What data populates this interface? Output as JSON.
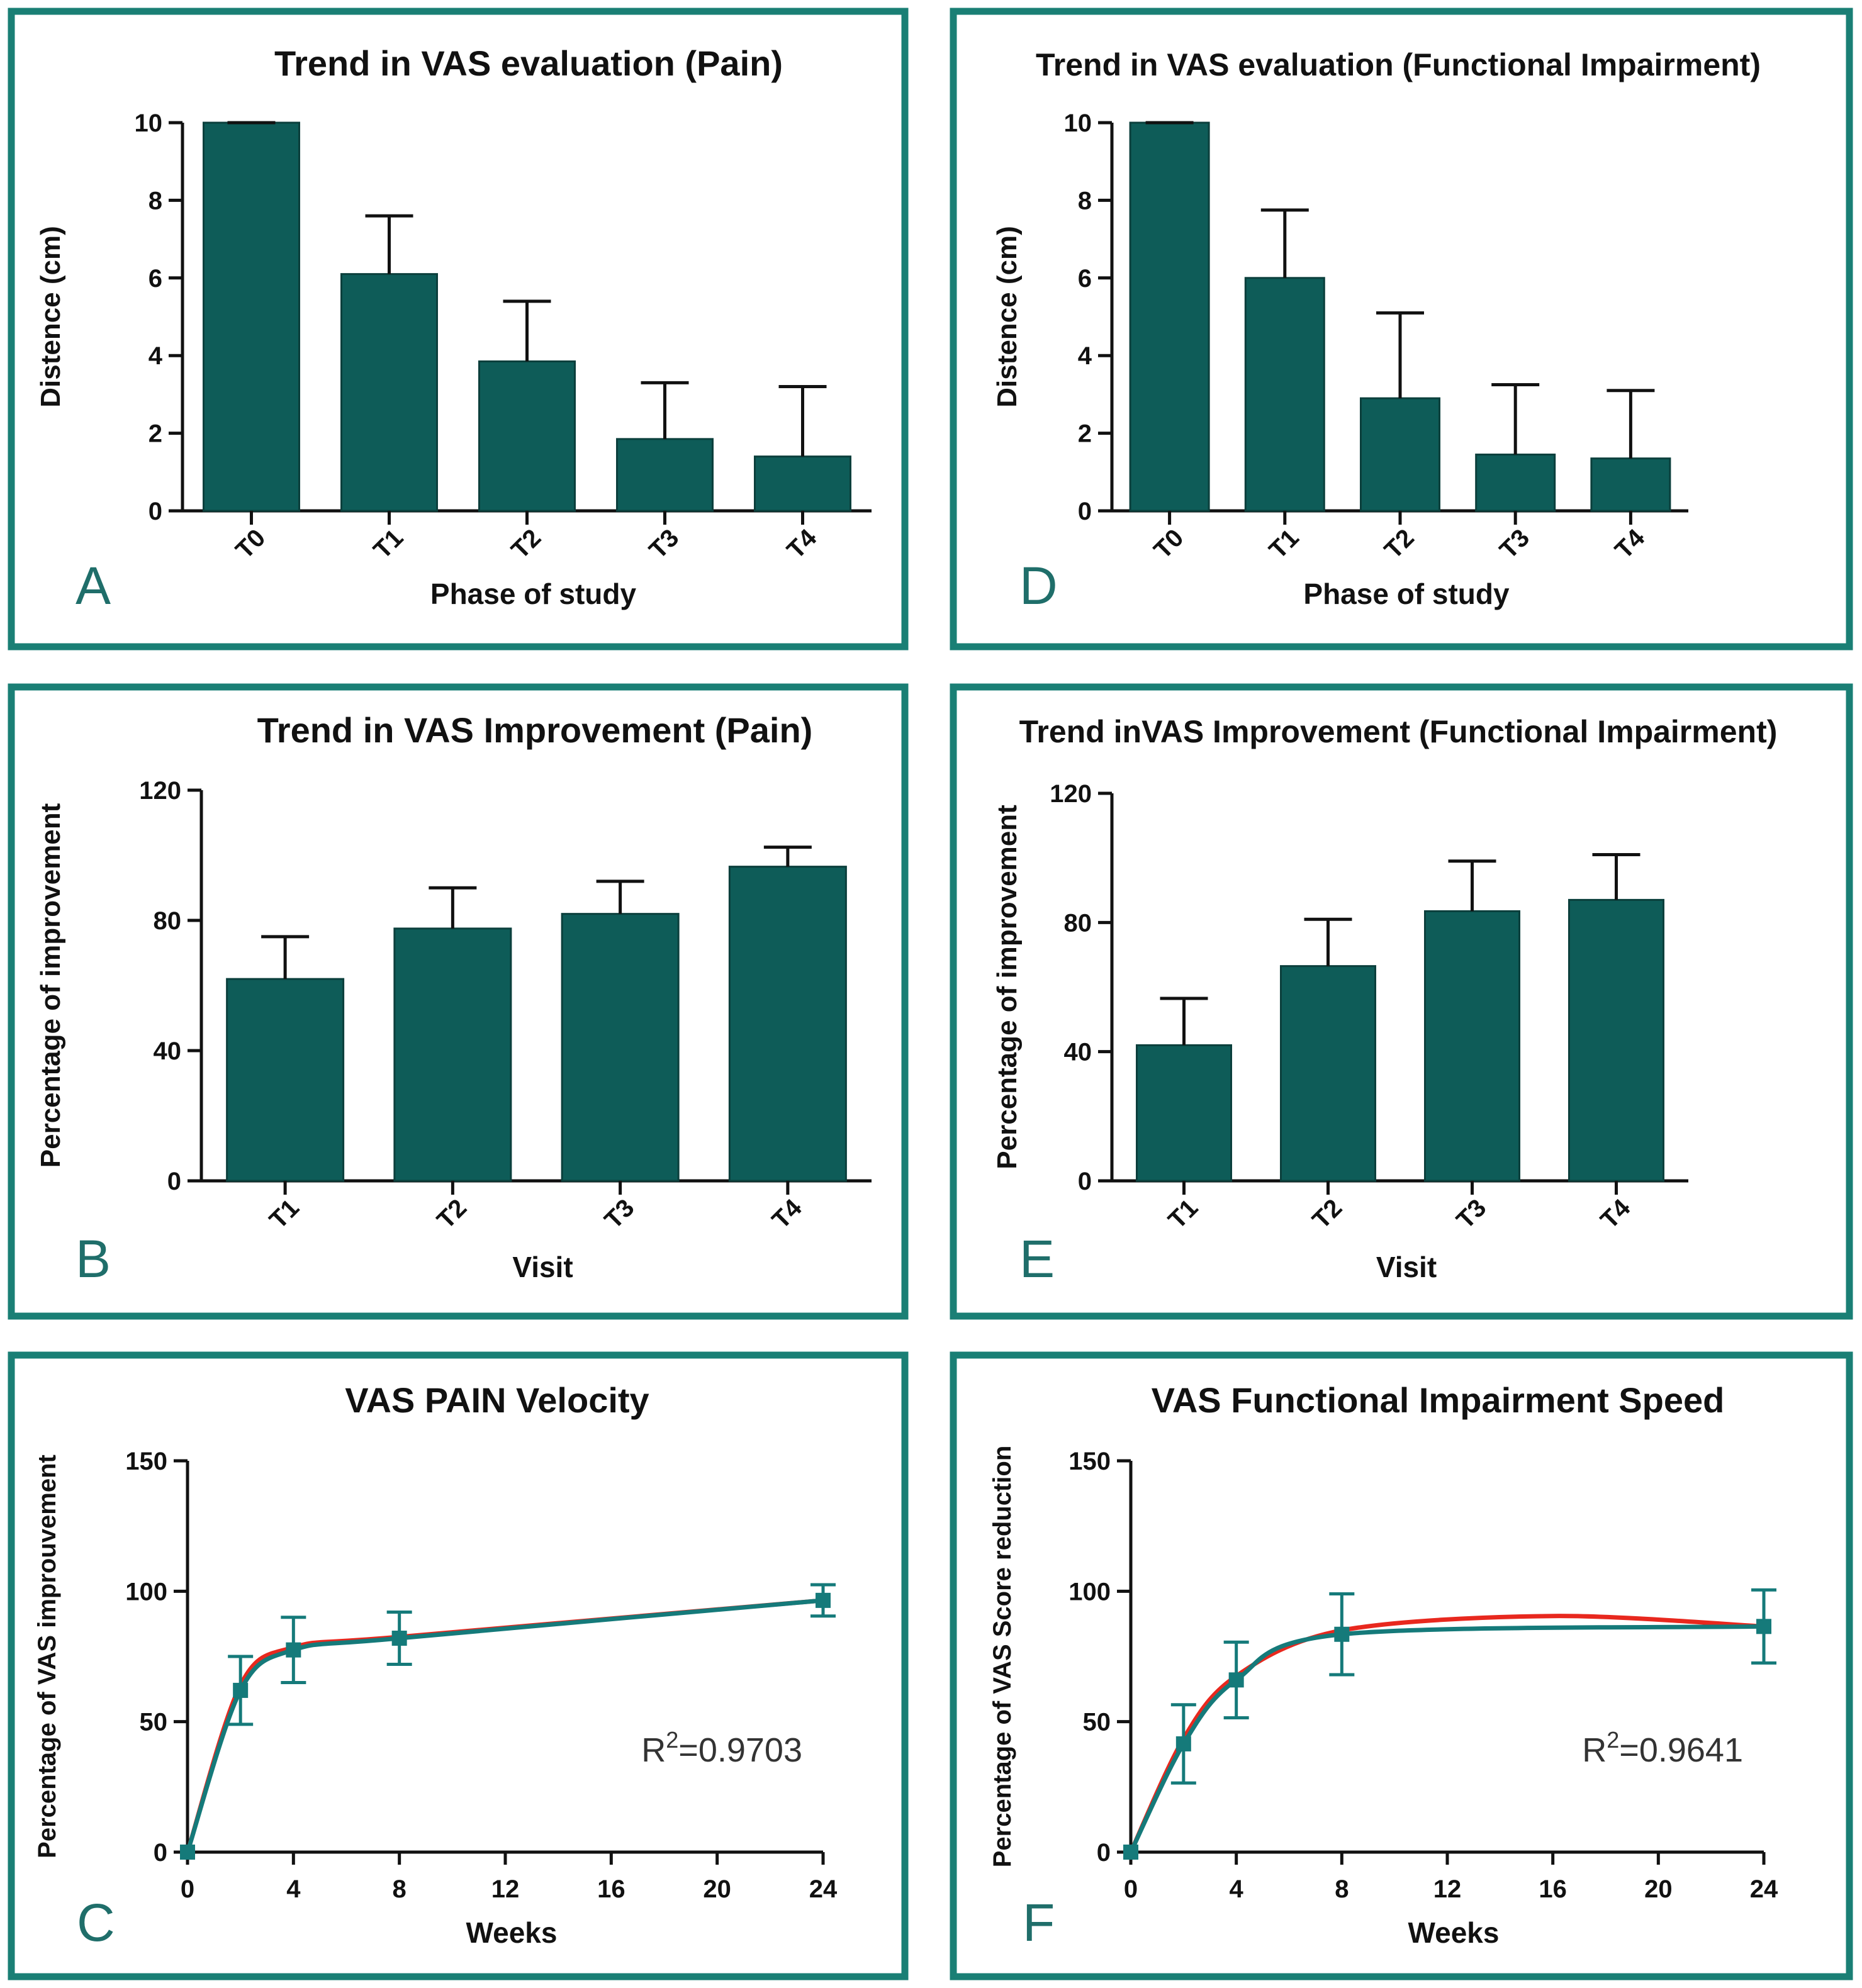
{
  "colors": {
    "frame": "#1a7f75",
    "bar": "#0e5c58",
    "line_observed": "#157a7a",
    "line_fit": "#e8281e",
    "letter": "#1f6e6a"
  },
  "chart_data": [
    {
      "id": "A",
      "type": "bar",
      "letter": "A",
      "title": "Trend in VAS evaluation (Pain)",
      "xlabel": "Phase of study",
      "ylabel": "Distence (cm)",
      "categories": [
        "T0",
        "T1",
        "T2",
        "T3",
        "T4"
      ],
      "values": [
        10.0,
        6.1,
        3.85,
        1.85,
        1.4
      ],
      "errors": [
        0.0,
        1.5,
        1.55,
        1.45,
        1.8
      ],
      "ylim": [
        0,
        10
      ],
      "yticks": [
        0,
        2,
        4,
        6,
        8,
        10
      ],
      "yticklabels": [
        "0",
        "2",
        "4",
        "6",
        "8",
        "10"
      ]
    },
    {
      "id": "D",
      "type": "bar",
      "letter": "D",
      "title": "Trend in VAS evaluation (Functional Impairment)",
      "xlabel": "Phase of study",
      "ylabel": "Distence (cm)",
      "categories": [
        "T0",
        "T1",
        "T2",
        "T3",
        "T4"
      ],
      "values": [
        10.0,
        6.0,
        2.9,
        1.45,
        1.35
      ],
      "errors": [
        0.0,
        1.75,
        2.2,
        1.8,
        1.75
      ],
      "ylim": [
        0,
        10
      ],
      "yticks": [
        0,
        2,
        4,
        6,
        8,
        10
      ],
      "yticklabels": [
        "0",
        "2",
        "4",
        "6",
        "8",
        "10"
      ]
    },
    {
      "id": "B",
      "type": "bar",
      "letter": "B",
      "title": "Trend in VAS Improvement (Pain)",
      "xlabel": "Visit",
      "ylabel": "Percentage of improvement",
      "categories": [
        "T1",
        "T2",
        "T3",
        "T4"
      ],
      "values": [
        62,
        77.5,
        82,
        96.5
      ],
      "errors": [
        13,
        12.5,
        10,
        6
      ],
      "ylim": [
        0,
        120
      ],
      "yticks": [
        0,
        40,
        80,
        120
      ],
      "yticklabels": [
        "0",
        "40",
        "80",
        "120"
      ]
    },
    {
      "id": "E",
      "type": "bar",
      "letter": "E",
      "title": "Trend inVAS Improvement (Functional Impairment)",
      "xlabel": "Visit",
      "ylabel": "Percentage of improvement",
      "categories": [
        "T1",
        "T2",
        "T3",
        "T4"
      ],
      "values": [
        42,
        66.5,
        83.5,
        87
      ],
      "errors": [
        14.5,
        14.5,
        15.5,
        14
      ],
      "ylim": [
        0,
        120
      ],
      "yticks": [
        0,
        40,
        80,
        120
      ],
      "yticklabels": [
        "0",
        "40",
        "80",
        "120"
      ]
    },
    {
      "id": "C",
      "type": "line",
      "letter": "C",
      "title": "VAS PAIN Velocity",
      "xlabel": "Weeks",
      "ylabel": "Percentage of VAS improuvement",
      "annotation_base": "R",
      "annotation_sup": "2",
      "annotation_value": "=0.9703",
      "x": [
        0,
        2,
        4,
        8,
        24
      ],
      "y": [
        0,
        62,
        77.5,
        82,
        96.5
      ],
      "errors": [
        0,
        13,
        12.5,
        10,
        6
      ],
      "fit_y": [
        0,
        64,
        78.5,
        82.5,
        96.5
      ],
      "xlim": [
        0,
        24
      ],
      "ylim": [
        0,
        150
      ],
      "xticks": [
        0,
        4,
        8,
        12,
        16,
        20,
        24
      ],
      "xticklabels": [
        "0",
        "4",
        "8",
        "12",
        "16",
        "20",
        "24"
      ],
      "yticks": [
        0,
        50,
        100,
        150
      ],
      "yticklabels": [
        "0",
        "50",
        "100",
        "150"
      ]
    },
    {
      "id": "F",
      "type": "line",
      "letter": "F",
      "title": "VAS Functional Impairment Speed",
      "xlabel": "Weeks",
      "ylabel": "Percentage of VAS Score reduction",
      "annotation_base": "R",
      "annotation_sup": "2",
      "annotation_value": "=0.9641",
      "x": [
        0,
        2,
        4,
        8,
        24
      ],
      "y": [
        0,
        41.5,
        66,
        83.5,
        86.5
      ],
      "errors": [
        0,
        15,
        14.5,
        15.5,
        14
      ],
      "fit_y": [
        0,
        43.5,
        67.5,
        85,
        86.5
      ],
      "fit_peak": [
        16,
        90.5
      ],
      "xlim": [
        0,
        24
      ],
      "ylim": [
        0,
        150
      ],
      "xticks": [
        0,
        4,
        8,
        12,
        16,
        20,
        24
      ],
      "xticklabels": [
        "0",
        "4",
        "8",
        "12",
        "16",
        "20",
        "24"
      ],
      "yticks": [
        0,
        50,
        100,
        150
      ],
      "yticklabels": [
        "0",
        "50",
        "100",
        "150"
      ]
    }
  ]
}
